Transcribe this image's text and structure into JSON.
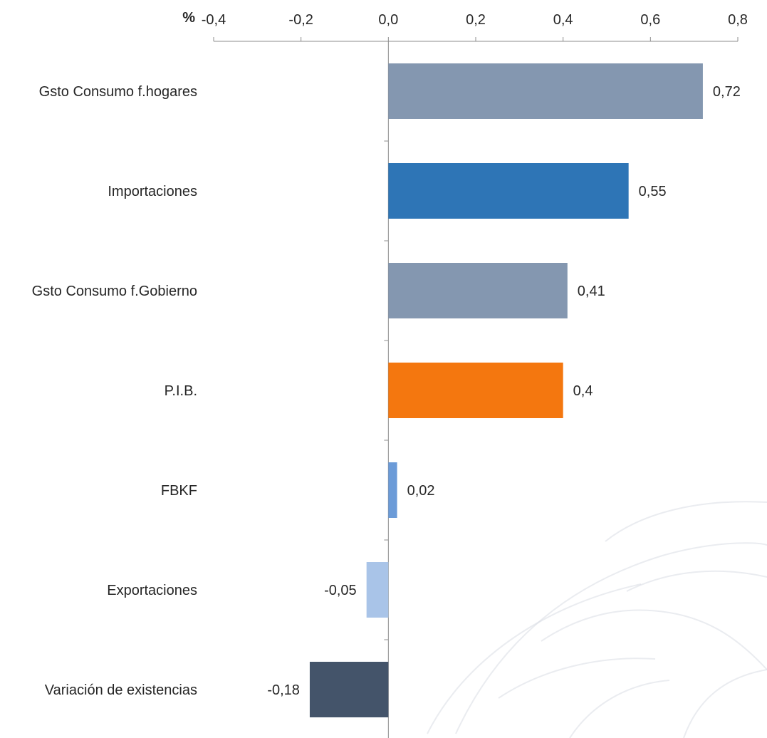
{
  "chart_data": {
    "type": "bar",
    "orientation": "horizontal",
    "unit_label": "%",
    "xlim": [
      -0.4,
      0.8
    ],
    "xticks": [
      -0.4,
      -0.2,
      0.0,
      0.2,
      0.4,
      0.6,
      0.8
    ],
    "xtick_labels": [
      "-0,4",
      "-0,2",
      "0,0",
      "0,2",
      "0,4",
      "0,6",
      "0,8"
    ],
    "x_axis_position": "top",
    "grid": false,
    "categories": [
      "Gsto Consumo f.hogares",
      "Importaciones",
      "Gsto Consumo f.Gobierno",
      "P.I.B.",
      "FBKF",
      "Exportaciones",
      "Variación de existencias"
    ],
    "values": [
      0.72,
      0.55,
      0.41,
      0.4,
      0.02,
      -0.05,
      -0.18
    ],
    "data_labels": [
      "0,72",
      "0,55",
      "0,41",
      "0,4",
      "0,02",
      "-0,05",
      "-0,18"
    ],
    "colors": [
      "#8497b0",
      "#2e75b6",
      "#8497b0",
      "#f4770f",
      "#6b9bd8",
      "#a9c4e8",
      "#44546a"
    ]
  }
}
